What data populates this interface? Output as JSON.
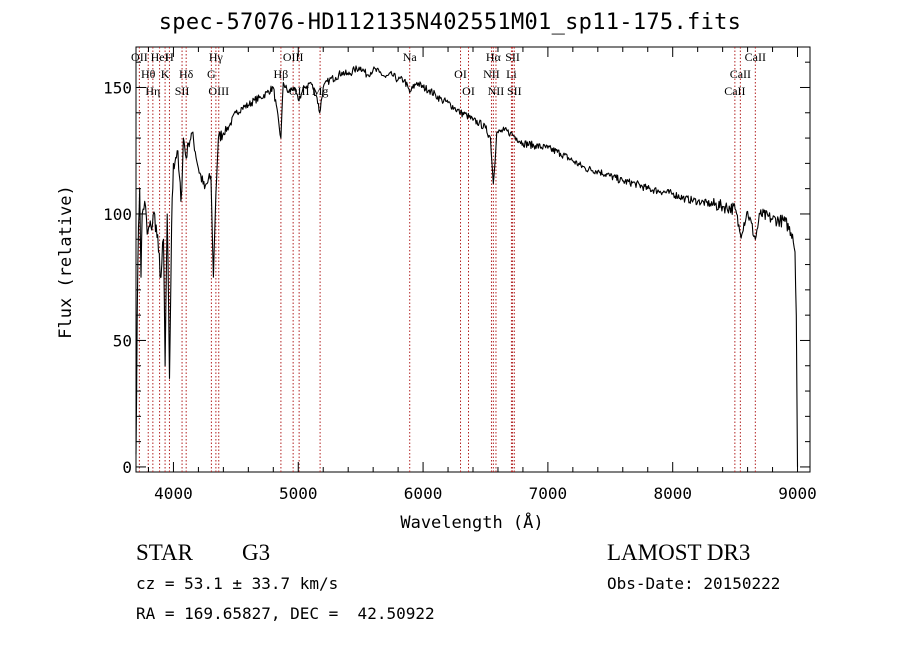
{
  "chart_data": {
    "type": "line",
    "title": "spec-57076-HD112135N402551M01_sp11-175.fits",
    "xlabel": "Wavelength (Å)",
    "ylabel": "Flux (relative)",
    "xlim": [
      3700,
      9100
    ],
    "ylim": [
      -2,
      166
    ],
    "x_ticks": [
      4000,
      5000,
      6000,
      7000,
      8000,
      9000
    ],
    "x_tick_labels": [
      "4000",
      "5000",
      "6000",
      "7000",
      "8000",
      "9000"
    ],
    "y_ticks": [
      0,
      50,
      100,
      150
    ],
    "y_tick_labels": [
      "0",
      "50",
      "100",
      "150"
    ],
    "grid": false,
    "series": [
      {
        "name": "spectrum",
        "x": [
          3700,
          3710,
          3720,
          3730,
          3740,
          3750,
          3770,
          3790,
          3820,
          3850,
          3880,
          3900,
          3920,
          3933,
          3950,
          3968,
          3985,
          4000,
          4030,
          4060,
          4080,
          4102,
          4120,
          4150,
          4200,
          4250,
          4300,
          4320,
          4340,
          4360,
          4400,
          4450,
          4500,
          4550,
          4600,
          4650,
          4700,
          4750,
          4800,
          4861,
          4880,
          4920,
          4960,
          5000,
          5050,
          5100,
          5150,
          5172,
          5200,
          5250,
          5300,
          5350,
          5400,
          5450,
          5500,
          5550,
          5600,
          5650,
          5700,
          5750,
          5800,
          5850,
          5893,
          5950,
          6000,
          6050,
          6100,
          6150,
          6200,
          6250,
          6300,
          6350,
          6400,
          6450,
          6500,
          6540,
          6563,
          6590,
          6650,
          6700,
          6750,
          6800,
          6900,
          7000,
          7100,
          7200,
          7300,
          7400,
          7500,
          7600,
          7700,
          7800,
          7900,
          8000,
          8100,
          8200,
          8300,
          8400,
          8500,
          8542,
          8600,
          8662,
          8700,
          8800,
          8900,
          8960,
          8980,
          8990,
          9000
        ],
        "y": [
          5,
          60,
          95,
          110,
          75,
          100,
          105,
          92,
          95,
          100,
          85,
          75,
          90,
          40,
          100,
          35,
          95,
          120,
          125,
          105,
          130,
          122,
          128,
          132,
          118,
          110,
          115,
          75,
          108,
          130,
          132,
          135,
          140,
          142,
          143,
          145,
          146,
          148,
          150,
          130,
          152,
          148,
          150,
          145,
          150,
          152,
          146,
          140,
          150,
          153,
          154,
          156,
          155,
          157,
          158,
          155,
          157,
          156,
          154,
          155,
          153,
          153,
          148,
          152,
          150,
          149,
          147,
          145,
          144,
          142,
          140,
          139,
          137,
          136,
          134,
          130,
          112,
          132,
          133,
          132,
          130,
          128,
          127,
          126,
          124,
          121,
          118,
          117,
          115,
          113,
          112,
          110,
          109,
          108,
          106,
          105,
          104,
          103,
          102,
          92,
          101,
          90,
          100,
          98,
          97,
          92,
          85,
          60,
          0
        ]
      }
    ],
    "lines": [
      {
        "name": "OII",
        "wavelength": 3727
      },
      {
        "name": "Hθ",
        "wavelength": 3798
      },
      {
        "name": "Hη",
        "wavelength": 3835
      },
      {
        "name": "HeI",
        "wavelength": 3889
      },
      {
        "name": "K",
        "wavelength": 3933
      },
      {
        "name": "SII",
        "wavelength": 4069
      },
      {
        "name": "H",
        "wavelength": 3968
      },
      {
        "name": "Hδ",
        "wavelength": 4102
      },
      {
        "name": "OIII",
        "wavelength": 4363
      },
      {
        "name": "Hγ",
        "wavelength": 4340
      },
      {
        "name": "G",
        "wavelength": 4304
      },
      {
        "name": "OIII",
        "wavelength": 5007
      },
      {
        "name": "OIII",
        "wavelength": 4959
      },
      {
        "name": "Hβ",
        "wavelength": 4861
      },
      {
        "name": "Mg",
        "wavelength": 5175
      },
      {
        "name": "Na",
        "wavelength": 5893
      },
      {
        "name": "OI",
        "wavelength": 6300
      },
      {
        "name": "OI",
        "wavelength": 6364
      },
      {
        "name": "Hα",
        "wavelength": 6563
      },
      {
        "name": "NII",
        "wavelength": 6548
      },
      {
        "name": "NII",
        "wavelength": 6584
      },
      {
        "name": "SII",
        "wavelength": 6717
      },
      {
        "name": "Li",
        "wavelength": 6708
      },
      {
        "name": "SII",
        "wavelength": 6731
      },
      {
        "name": "CaII",
        "wavelength": 8662
      },
      {
        "name": "CaII",
        "wavelength": 8542
      },
      {
        "name": "CaII",
        "wavelength": 8498
      }
    ]
  },
  "info": {
    "object_type": "STAR",
    "subclass": "G3",
    "survey": "LAMOST DR3",
    "cz": "cz = 53.1 ± 33.7 km/s",
    "obs_date": "Obs-Date: 20150222",
    "coords": "RA = 169.65827, DEC =  42.50922"
  }
}
